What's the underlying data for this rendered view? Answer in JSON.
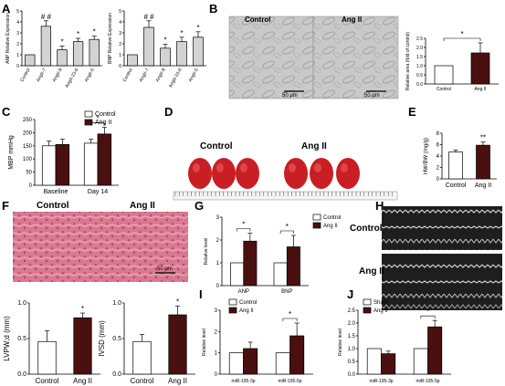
{
  "panels": {
    "A": "A",
    "B": "B",
    "C": "C",
    "D": "D",
    "E": "E",
    "F": "F",
    "G": "G",
    "H": "H",
    "I": "I",
    "J": "J"
  },
  "colors": {
    "bar_gray": "#d3d3d3",
    "bar_dark": "#4a1010",
    "heart": "#c81e24",
    "he_bg": "#d96e8a"
  },
  "photos": {
    "b_left": "Control",
    "b_right": "Ang II",
    "b_scale_left": "50 μm",
    "b_scale_right": "50 μm",
    "d_left": "Control",
    "d_right": "Ang II",
    "f_left": "Control",
    "f_right": "Ang II",
    "f_scale": "50 μm",
    "h_top": "Control",
    "h_bottom": "Ang II"
  },
  "chart_data": [
    {
      "id": "A1",
      "type": "bar",
      "ylabel": "ANP Relative Expression",
      "categories": [
        "Control",
        "AngII-7",
        "AngII-9",
        "AngII-23-6",
        "AngII-5"
      ],
      "values": [
        1.0,
        3.6,
        1.45,
        2.2,
        2.4
      ],
      "errors": [
        0.0,
        0.5,
        0.35,
        0.3,
        0.3
      ],
      "stars": [
        "",
        "# #",
        "*",
        "*",
        "*"
      ],
      "ylim": [
        0,
        5
      ],
      "yticks": [
        "0",
        "1",
        "2",
        "3",
        "4",
        "5"
      ]
    },
    {
      "id": "A2",
      "type": "bar",
      "ylabel": "BNP Relative Expression",
      "categories": [
        "Control",
        "AngII-7",
        "AngII-9",
        "AngII-23-6",
        "AngII-5"
      ],
      "values": [
        1.0,
        3.5,
        1.6,
        2.2,
        2.6
      ],
      "errors": [
        0.0,
        0.6,
        0.35,
        0.4,
        0.5
      ],
      "stars": [
        "",
        "# #",
        "*",
        "*",
        "*"
      ],
      "ylim": [
        0,
        5
      ],
      "yticks": [
        "0",
        "1",
        "2",
        "3",
        "4",
        "5"
      ]
    },
    {
      "id": "B",
      "type": "bar",
      "ylabel": "Relative area (fold of control)",
      "categories": [
        "Control",
        "Ang II"
      ],
      "values": [
        1.0,
        1.7
      ],
      "errors": [
        0.0,
        0.55
      ],
      "stars": [
        "",
        ""
      ],
      "bracket_star": "*",
      "ylim": [
        0,
        2.5
      ],
      "yticks": [
        "0.0",
        "0.5",
        "1.0",
        "1.5",
        "2.0",
        "2.5"
      ]
    },
    {
      "id": "C",
      "type": "bar",
      "ylabel": "MBP mmHg",
      "groups": [
        "Baseline",
        "Day 14"
      ],
      "series": [
        {
          "name": "Control",
          "values": [
            150,
            160
          ],
          "errors": [
            18,
            15
          ]
        },
        {
          "name": "Ang II",
          "values": [
            155,
            195
          ],
          "errors": [
            20,
            25
          ]
        }
      ],
      "bracket_star": "*",
      "ylim": [
        0,
        250
      ],
      "yticks": [
        "0",
        "50",
        "100",
        "150",
        "200",
        "250"
      ]
    },
    {
      "id": "E",
      "type": "bar",
      "ylabel": "HW/BW (mg/g)",
      "categories": [
        "Control",
        "Ang II"
      ],
      "values": [
        4.7,
        5.9
      ],
      "errors": [
        0.35,
        0.55
      ],
      "stars": [
        "",
        "**"
      ],
      "ylim": [
        0,
        8
      ],
      "yticks": [
        "0",
        "2",
        "4",
        "6",
        "8"
      ]
    },
    {
      "id": "F1",
      "type": "bar",
      "ylabel": "LVPW;d (mm)",
      "categories": [
        "Control",
        "Ang II"
      ],
      "values": [
        0.55,
        0.95
      ],
      "errors": [
        0.18,
        0.08
      ],
      "stars": [
        "",
        "*"
      ],
      "ylim": [
        0,
        1.2
      ],
      "yticks": [
        "0.0",
        "0.5",
        "1.0"
      ]
    },
    {
      "id": "F2",
      "type": "bar",
      "ylabel": "IVSD (mm)",
      "categories": [
        "Control",
        "Ang II"
      ],
      "values": [
        0.55,
        1.0
      ],
      "errors": [
        0.12,
        0.15
      ],
      "stars": [
        "",
        "*"
      ],
      "ylim": [
        0,
        1.2
      ],
      "yticks": [
        "0.0",
        "0.5",
        "1.0"
      ]
    },
    {
      "id": "G",
      "type": "bar",
      "ylabel": "Relative level",
      "groups": [
        "ANP",
        "BNP"
      ],
      "series": [
        {
          "name": "Control",
          "values": [
            1.0,
            1.0
          ],
          "errors": [
            0,
            0
          ]
        },
        {
          "name": "Ang II",
          "values": [
            1.95,
            1.7
          ],
          "errors": [
            0.35,
            0.5
          ]
        }
      ],
      "group_stars": [
        "*",
        "*"
      ],
      "ylim": [
        0,
        3
      ],
      "yticks": [
        "0",
        "1",
        "2",
        "3"
      ]
    },
    {
      "id": "I",
      "type": "bar",
      "ylabel": "Relative level",
      "groups": [
        "miR-195-3p",
        "miR-195-5p"
      ],
      "series": [
        {
          "name": "Control",
          "values": [
            1.0,
            1.0
          ],
          "errors": [
            0,
            0
          ]
        },
        {
          "name": "Ang II",
          "values": [
            1.2,
            1.8
          ],
          "errors": [
            0.3,
            0.6
          ]
        }
      ],
      "group_stars": [
        "",
        "*"
      ],
      "ylim": [
        0,
        3
      ],
      "yticks": [
        "0",
        "1",
        "2",
        "3"
      ]
    },
    {
      "id": "J",
      "type": "bar",
      "ylabel": "Relative level",
      "groups": [
        "miR-195-3p",
        "miR-195-5p"
      ],
      "series": [
        {
          "name": "Sham",
          "values": [
            1.0,
            1.0
          ],
          "errors": [
            0,
            0
          ]
        },
        {
          "name": "Ang II",
          "values": [
            0.8,
            1.85
          ],
          "errors": [
            0.1,
            0.25
          ]
        }
      ],
      "group_stars": [
        "",
        "*"
      ],
      "ylim": [
        0,
        2.5
      ],
      "yticks": [
        "0.0",
        "0.5",
        "1.0",
        "1.5",
        "2.0",
        "2.5"
      ]
    }
  ]
}
